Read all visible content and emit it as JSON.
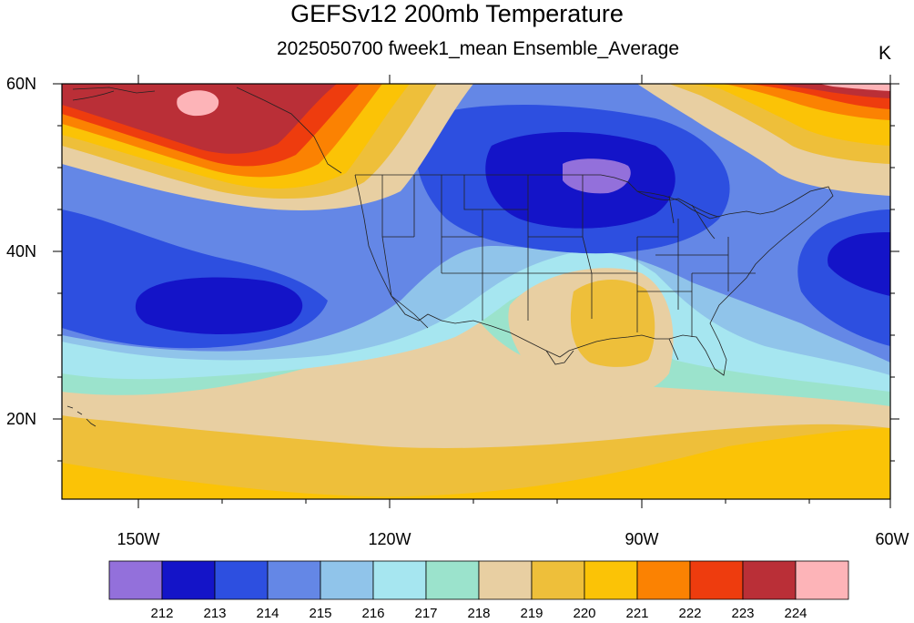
{
  "title": "GEFSv12 200mb Temperature",
  "subtitle": "2025050700 fweek1_mean Ensemble_Average",
  "units": "K",
  "lat_labels": [
    "60N",
    "40N",
    "20N"
  ],
  "lon_labels": [
    "150W",
    "120W",
    "90W",
    "60W"
  ],
  "colorbar": {
    "labels": [
      "212",
      "213",
      "214",
      "215",
      "216",
      "217",
      "218",
      "219",
      "220",
      "221",
      "222",
      "223",
      "224"
    ],
    "colors": [
      "#9370db",
      "#1414c8",
      "#2d4fe0",
      "#6487e6",
      "#90c4ea",
      "#a6e6f0",
      "#9be3cc",
      "#e8cfa2",
      "#eebf3a",
      "#fbc306",
      "#fb8202",
      "#ee3c0e",
      "#ba2f37",
      "#fdb4b8"
    ]
  }
}
